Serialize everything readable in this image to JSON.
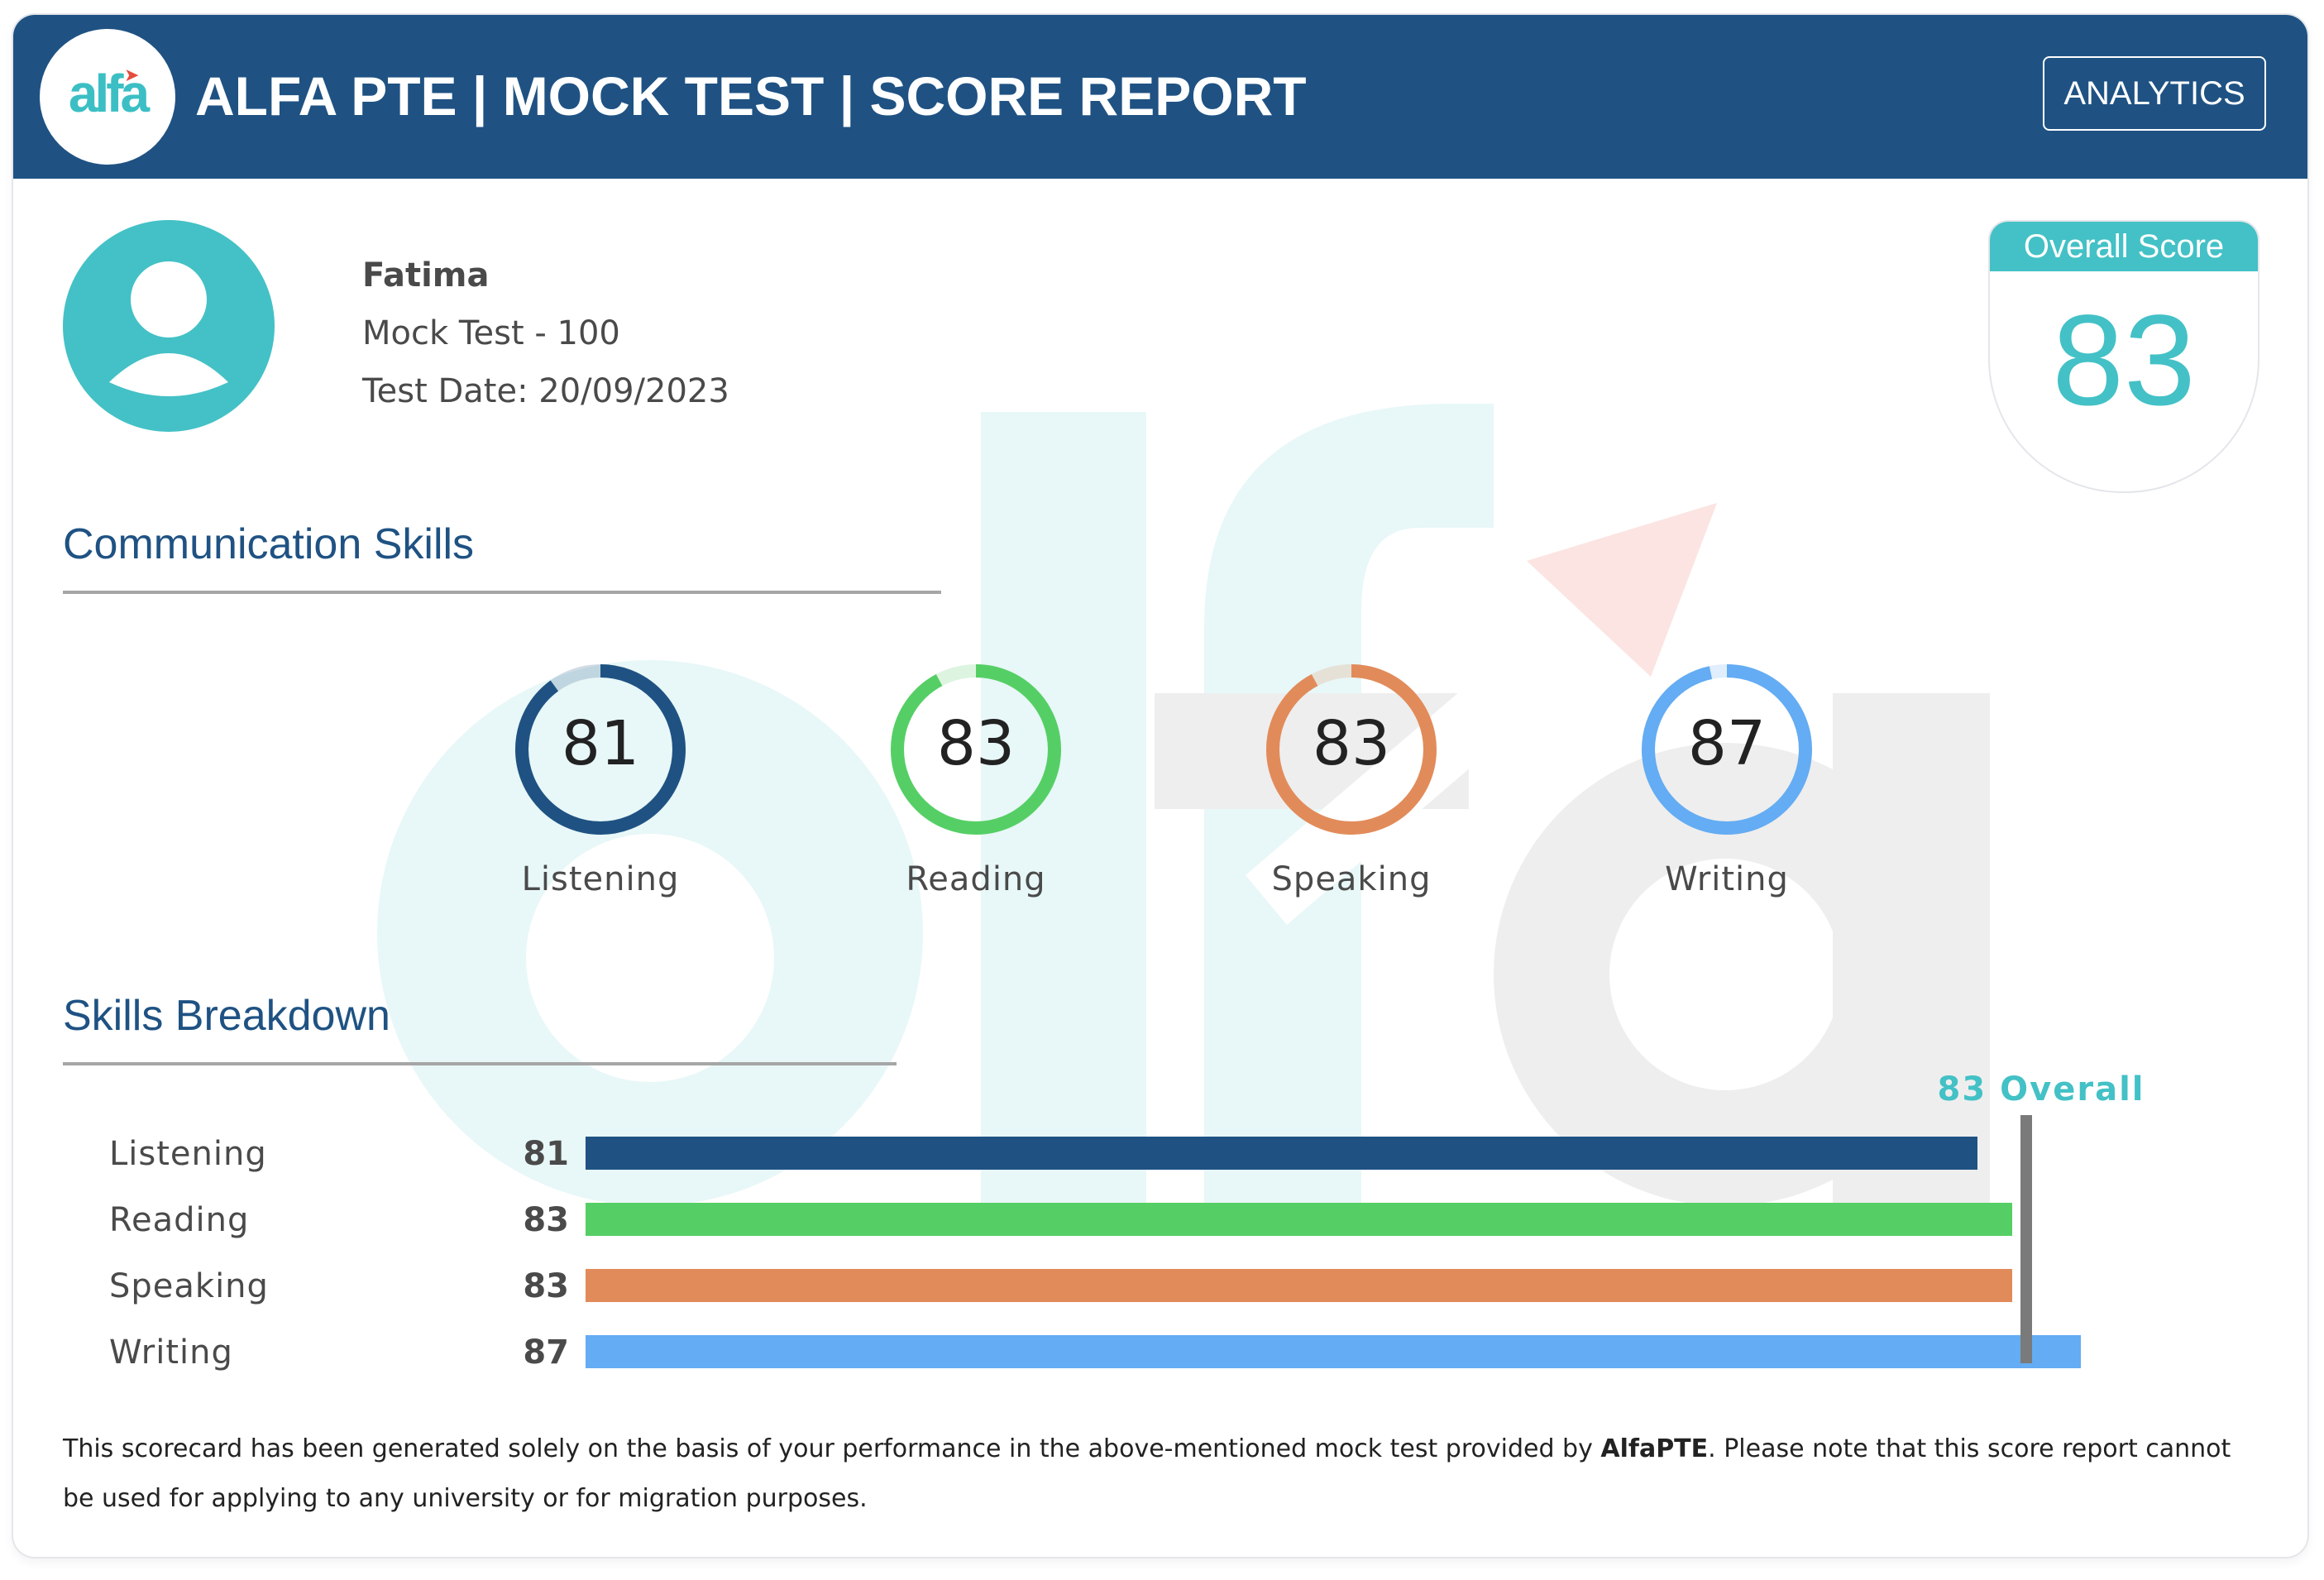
{
  "header": {
    "logo_text": "alfa",
    "title": "ALFA PTE | MOCK TEST | SCORE REPORT",
    "analytics_label": "ANALYTICS",
    "color": "#1f5283"
  },
  "student": {
    "name": "Fatima",
    "test": "Mock Test - 100",
    "date_label": "Test Date: 20/09/2023"
  },
  "overall": {
    "label": "Overall Score",
    "score": "83",
    "marker_label": "83 Overall",
    "value": 83
  },
  "communication": {
    "title": "Communication Skills",
    "skills": [
      {
        "label": "Listening",
        "score": "81",
        "value": 81,
        "color": "#1f5283"
      },
      {
        "label": "Reading",
        "score": "83",
        "value": 83,
        "color": "#55cf65"
      },
      {
        "label": "Speaking",
        "score": "83",
        "value": 83,
        "color": "#e28b5a"
      },
      {
        "label": "Writing",
        "score": "87",
        "value": 87,
        "color": "#64acf3"
      }
    ]
  },
  "breakdown": {
    "title": "Skills Breakdown",
    "max": 90,
    "rows": [
      {
        "label": "Listening",
        "score": "81",
        "value": 81,
        "color": "#1f5283"
      },
      {
        "label": "Reading",
        "score": "83",
        "value": 83,
        "color": "#55cf65"
      },
      {
        "label": "Speaking",
        "score": "83",
        "value": 83,
        "color": "#e28b5a"
      },
      {
        "label": "Writing",
        "score": "87",
        "value": 87,
        "color": "#64acf3"
      }
    ]
  },
  "disclaimer": {
    "part1": "This scorecard has been generated solely on the basis of your performance in the above-mentioned mock test provided by ",
    "brand": "AlfaPTE",
    "part2": ". Please note that this score report cannot be used for applying to any university or for migration purposes."
  },
  "colors": {
    "accent": "#43c1c6",
    "heading": "#1f5283"
  }
}
